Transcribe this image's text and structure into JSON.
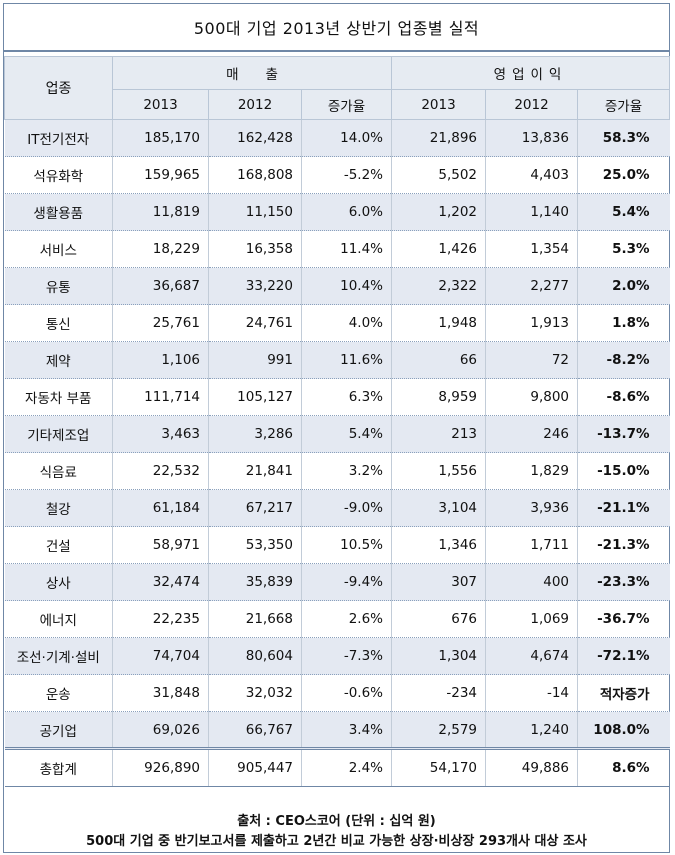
{
  "title": "500대 기업 2013년 상반기 업종별 실적",
  "header": {
    "sector": "업종",
    "sales": "매　　출",
    "op_profit": "영업이익",
    "col_2013": "2013",
    "col_2012": "2012",
    "col_growth": "증가율"
  },
  "rows": [
    {
      "sector": "IT전기전자",
      "s13": "185,170",
      "s12": "162,428",
      "sg": "14.0%",
      "o13": "21,896",
      "o12": "13,836",
      "og": "58.3%"
    },
    {
      "sector": "석유화학",
      "s13": "159,965",
      "s12": "168,808",
      "sg": "-5.2%",
      "o13": "5,502",
      "o12": "4,403",
      "og": "25.0%"
    },
    {
      "sector": "생활용품",
      "s13": "11,819",
      "s12": "11,150",
      "sg": "6.0%",
      "o13": "1,202",
      "o12": "1,140",
      "og": "5.4%"
    },
    {
      "sector": "서비스",
      "s13": "18,229",
      "s12": "16,358",
      "sg": "11.4%",
      "o13": "1,426",
      "o12": "1,354",
      "og": "5.3%"
    },
    {
      "sector": "유통",
      "s13": "36,687",
      "s12": "33,220",
      "sg": "10.4%",
      "o13": "2,322",
      "o12": "2,277",
      "og": "2.0%"
    },
    {
      "sector": "통신",
      "s13": "25,761",
      "s12": "24,761",
      "sg": "4.0%",
      "o13": "1,948",
      "o12": "1,913",
      "og": "1.8%"
    },
    {
      "sector": "제약",
      "s13": "1,106",
      "s12": "991",
      "sg": "11.6%",
      "o13": "66",
      "o12": "72",
      "og": "-8.2%"
    },
    {
      "sector": "자동차 부품",
      "s13": "111,714",
      "s12": "105,127",
      "sg": "6.3%",
      "o13": "8,959",
      "o12": "9,800",
      "og": "-8.6%"
    },
    {
      "sector": "기타제조업",
      "s13": "3,463",
      "s12": "3,286",
      "sg": "5.4%",
      "o13": "213",
      "o12": "246",
      "og": "-13.7%"
    },
    {
      "sector": "식음료",
      "s13": "22,532",
      "s12": "21,841",
      "sg": "3.2%",
      "o13": "1,556",
      "o12": "1,829",
      "og": "-15.0%"
    },
    {
      "sector": "철강",
      "s13": "61,184",
      "s12": "67,217",
      "sg": "-9.0%",
      "o13": "3,104",
      "o12": "3,936",
      "og": "-21.1%"
    },
    {
      "sector": "건설",
      "s13": "58,971",
      "s12": "53,350",
      "sg": "10.5%",
      "o13": "1,346",
      "o12": "1,711",
      "og": "-21.3%"
    },
    {
      "sector": "상사",
      "s13": "32,474",
      "s12": "35,839",
      "sg": "-9.4%",
      "o13": "307",
      "o12": "400",
      "og": "-23.3%"
    },
    {
      "sector": "에너지",
      "s13": "22,235",
      "s12": "21,668",
      "sg": "2.6%",
      "o13": "676",
      "o12": "1,069",
      "og": "-36.7%"
    },
    {
      "sector": "조선·기계·설비",
      "s13": "74,704",
      "s12": "80,604",
      "sg": "-7.3%",
      "o13": "1,304",
      "o12": "4,674",
      "og": "-72.1%"
    },
    {
      "sector": "운송",
      "s13": "31,848",
      "s12": "32,032",
      "sg": "-0.6%",
      "o13": "-234",
      "o12": "-14",
      "og": "적자증가"
    },
    {
      "sector": "공기업",
      "s13": "69,026",
      "s12": "66,767",
      "sg": "3.4%",
      "o13": "2,579",
      "o12": "1,240",
      "og": "108.0%"
    }
  ],
  "total": {
    "sector": "총합계",
    "s13": "926,890",
    "s12": "905,447",
    "sg": "2.4%",
    "o13": "54,170",
    "o12": "49,886",
    "og": "8.6%"
  },
  "footer": {
    "source": "출처 : CEO스코어 (단위 : 십억 원)",
    "note": "500대 기업 중 반기보고서를 제출하고 2년간 비교 가능한 상장·비상장 293개사 대상 조사"
  }
}
